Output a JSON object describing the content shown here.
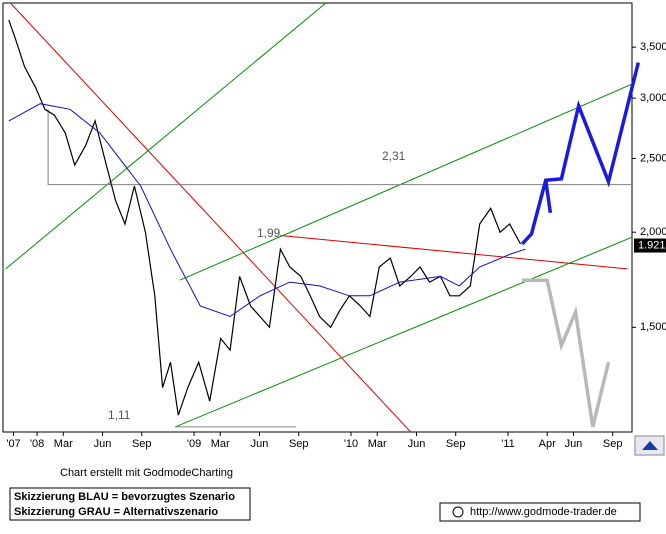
{
  "chart_data": {
    "type": "line",
    "log_y": true,
    "xlim": [
      2007.783,
      2011.79
    ],
    "ylim": [
      1.093,
      4.0
    ],
    "yticks": [
      {
        "value": 1.5,
        "label": "1,500"
      },
      {
        "value": 2.0,
        "label": "2,000"
      },
      {
        "value": 2.5,
        "label": "2,500"
      },
      {
        "value": 3.0,
        "label": "3,000"
      },
      {
        "value": 3.5,
        "label": "3,500"
      }
    ],
    "xticks": [
      {
        "value": 2007.85,
        "label": "'07"
      },
      {
        "value": 2008.0,
        "label": "'08"
      },
      {
        "value": 2008.167,
        "label": "Mar"
      },
      {
        "value": 2008.417,
        "label": "Jun"
      },
      {
        "value": 2008.667,
        "label": "Sep"
      },
      {
        "value": 2009.0,
        "label": "'09"
      },
      {
        "value": 2009.167,
        "label": "Mar"
      },
      {
        "value": 2009.417,
        "label": "Jun"
      },
      {
        "value": 2009.667,
        "label": "Sep"
      },
      {
        "value": 2010.0,
        "label": "'10"
      },
      {
        "value": 2010.167,
        "label": "Mar"
      },
      {
        "value": 2010.417,
        "label": "Jun"
      },
      {
        "value": 2010.667,
        "label": "Sep"
      },
      {
        "value": 2011.0,
        "label": "'11"
      },
      {
        "value": 2011.25,
        "label": "Apr"
      },
      {
        "value": 2011.417,
        "label": "Jun"
      },
      {
        "value": 2011.667,
        "label": "Sep"
      }
    ],
    "series": [
      {
        "color": "#000000",
        "width": 1.2,
        "x": [
          2007.82,
          2007.86,
          2007.92,
          2007.99,
          2008.05,
          2008.11,
          2008.18,
          2008.24,
          2008.31,
          2008.37,
          2008.43,
          2008.5,
          2008.56,
          2008.62,
          2008.69,
          2008.75,
          2008.8,
          2008.85,
          2008.9,
          2008.96,
          2009.03,
          2009.1,
          2009.17,
          2009.23,
          2009.29,
          2009.36,
          2009.42,
          2009.48,
          2009.55,
          2009.61,
          2009.68,
          2009.74,
          2009.8,
          2009.87,
          2009.93,
          2009.99,
          2010.06,
          2010.12,
          2010.18,
          2010.25,
          2010.31,
          2010.38,
          2010.44,
          2010.5,
          2010.57,
          2010.63,
          2010.69,
          2010.76,
          2010.82,
          2010.89,
          2010.95,
          2011.01,
          2011.08
        ],
        "values": [
          3.8,
          3.6,
          3.3,
          3.1,
          2.9,
          2.85,
          2.7,
          2.45,
          2.6,
          2.8,
          2.5,
          2.2,
          2.05,
          2.3,
          2.0,
          1.65,
          1.25,
          1.35,
          1.15,
          1.25,
          1.35,
          1.2,
          1.45,
          1.4,
          1.75,
          1.6,
          1.55,
          1.5,
          1.9,
          1.8,
          1.75,
          1.65,
          1.55,
          1.5,
          1.58,
          1.65,
          1.6,
          1.55,
          1.8,
          1.85,
          1.7,
          1.75,
          1.8,
          1.72,
          1.75,
          1.65,
          1.65,
          1.7,
          2.05,
          2.15,
          2.0,
          2.05,
          1.93
        ]
      },
      {
        "color": "#1010c0",
        "width": 1,
        "x": [
          2007.82,
          2008.02,
          2008.21,
          2008.4,
          2008.66,
          2008.85,
          2009.04,
          2009.23,
          2009.42,
          2009.61,
          2009.8,
          2009.99,
          2010.12,
          2010.31,
          2010.57,
          2010.69,
          2010.82,
          2011.01,
          2011.11
        ],
        "values": [
          2.8,
          2.95,
          2.9,
          2.7,
          2.3,
          1.9,
          1.6,
          1.55,
          1.65,
          1.72,
          1.7,
          1.65,
          1.65,
          1.72,
          1.75,
          1.7,
          1.8,
          1.87,
          1.9
        ]
      },
      {
        "color": "#1a1ae0",
        "width": 3.5,
        "x": [
          2011.09,
          2011.15,
          2011.24,
          2011.34,
          2011.45,
          2011.64,
          2011.83
        ],
        "values": [
          1.93,
          1.99,
          2.34,
          2.35,
          2.93,
          2.33,
          3.34
        ]
      },
      {
        "color": "#1a1ae0",
        "width": 3.5,
        "x": [
          2011.24,
          2011.27
        ],
        "values": [
          2.34,
          2.12
        ]
      },
      {
        "color": "#b8b8b8",
        "width": 3.5,
        "x": [
          2011.09,
          2011.25,
          2011.34,
          2011.43,
          2011.54,
          2011.64
        ],
        "values": [
          1.73,
          1.73,
          1.42,
          1.57,
          1.11,
          1.35
        ]
      }
    ],
    "trend_lines": [
      {
        "color": "#e00000",
        "x": [
          2007.83,
          2010.38
        ],
        "values": [
          4.0,
          1.093
        ]
      },
      {
        "color": "#e00000",
        "x": [
          2009.55,
          2011.76
        ],
        "values": [
          1.98,
          1.79
        ]
      },
      {
        "color": "#009000",
        "x": [
          2008.91,
          2011.79
        ],
        "values": [
          1.73,
          3.13
        ]
      },
      {
        "color": "#009000",
        "x": [
          2008.88,
          2011.79
        ],
        "values": [
          1.11,
          1.97
        ]
      },
      {
        "color": "#009000",
        "x": [
          2007.8,
          2009.84
        ],
        "values": [
          1.79,
          4.0
        ]
      },
      {
        "color": "#808080",
        "x": [
          2008.07,
          2008.07,
          2011.79
        ],
        "values": [
          2.9,
          2.31,
          2.31
        ]
      },
      {
        "color": "#808080",
        "x": [
          2008.88,
          2009.65
        ],
        "values": [
          1.11,
          1.11
        ]
      }
    ],
    "annotations": [
      "2,31",
      "1,99",
      "1,11"
    ],
    "last_price": 1.921,
    "credit": "Chart erstellt mit GodmodeCharting",
    "notes": [
      "Skizzierung BLAU = bevorzugtes Szenario",
      "Skizzierung GRAU = Alternativszenario"
    ],
    "url": "http://www.godmode-trader.de"
  }
}
